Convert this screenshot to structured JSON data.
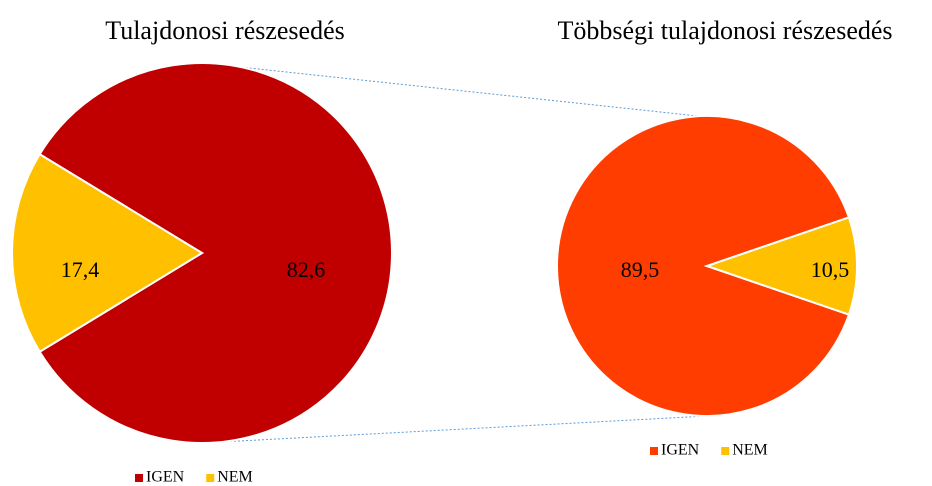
{
  "chart_data": [
    {
      "type": "pie",
      "title": "Tulajdonosi részesedés",
      "categories": [
        "IGEN",
        "NEM"
      ],
      "values": [
        82.6,
        17.4
      ],
      "value_labels": [
        "82,6",
        "17,4"
      ],
      "colors": [
        "#c00000",
        "#ffc000"
      ],
      "legend": "bottom"
    },
    {
      "type": "pie",
      "title": "Többségi tulajdonosi részesedés",
      "categories": [
        "IGEN",
        "NEM"
      ],
      "values": [
        89.5,
        10.5
      ],
      "value_labels": [
        "89,5",
        "10,5"
      ],
      "colors": [
        "#ff3d00",
        "#ffc000"
      ],
      "legend": "bottom"
    }
  ]
}
